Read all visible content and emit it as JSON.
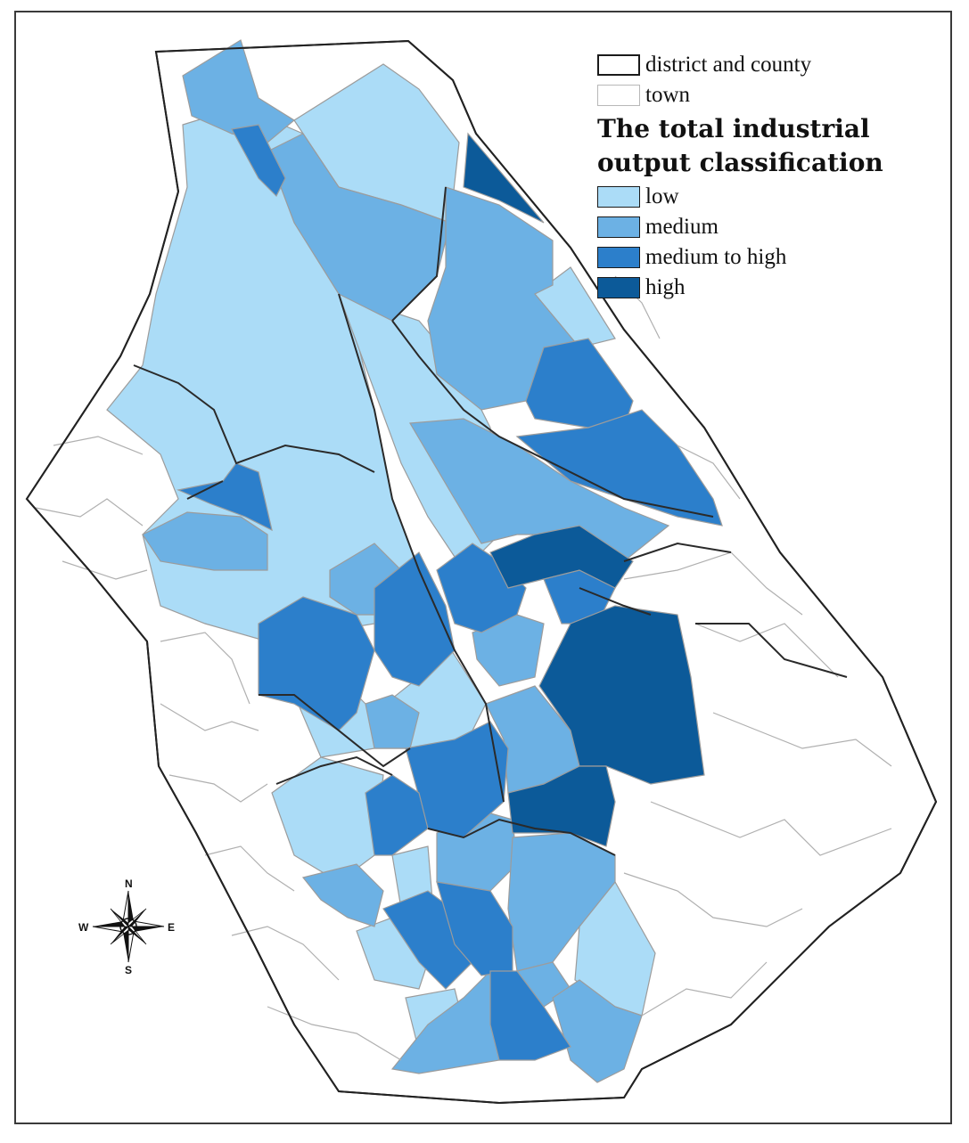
{
  "legend": {
    "district_label": "district and county",
    "town_label": "town",
    "title_line1": "The total industrial",
    "title_line2": "output classification",
    "classes": [
      {
        "label": "low",
        "color": "#abdcf7"
      },
      {
        "label": "medium",
        "color": "#6cb1e4"
      },
      {
        "label": "medium to high",
        "color": "#2c7fcb"
      },
      {
        "label": "high",
        "color": "#0c5a99"
      }
    ]
  },
  "compass": {
    "n": "N",
    "s": "S",
    "e": "E",
    "w": "W"
  }
}
